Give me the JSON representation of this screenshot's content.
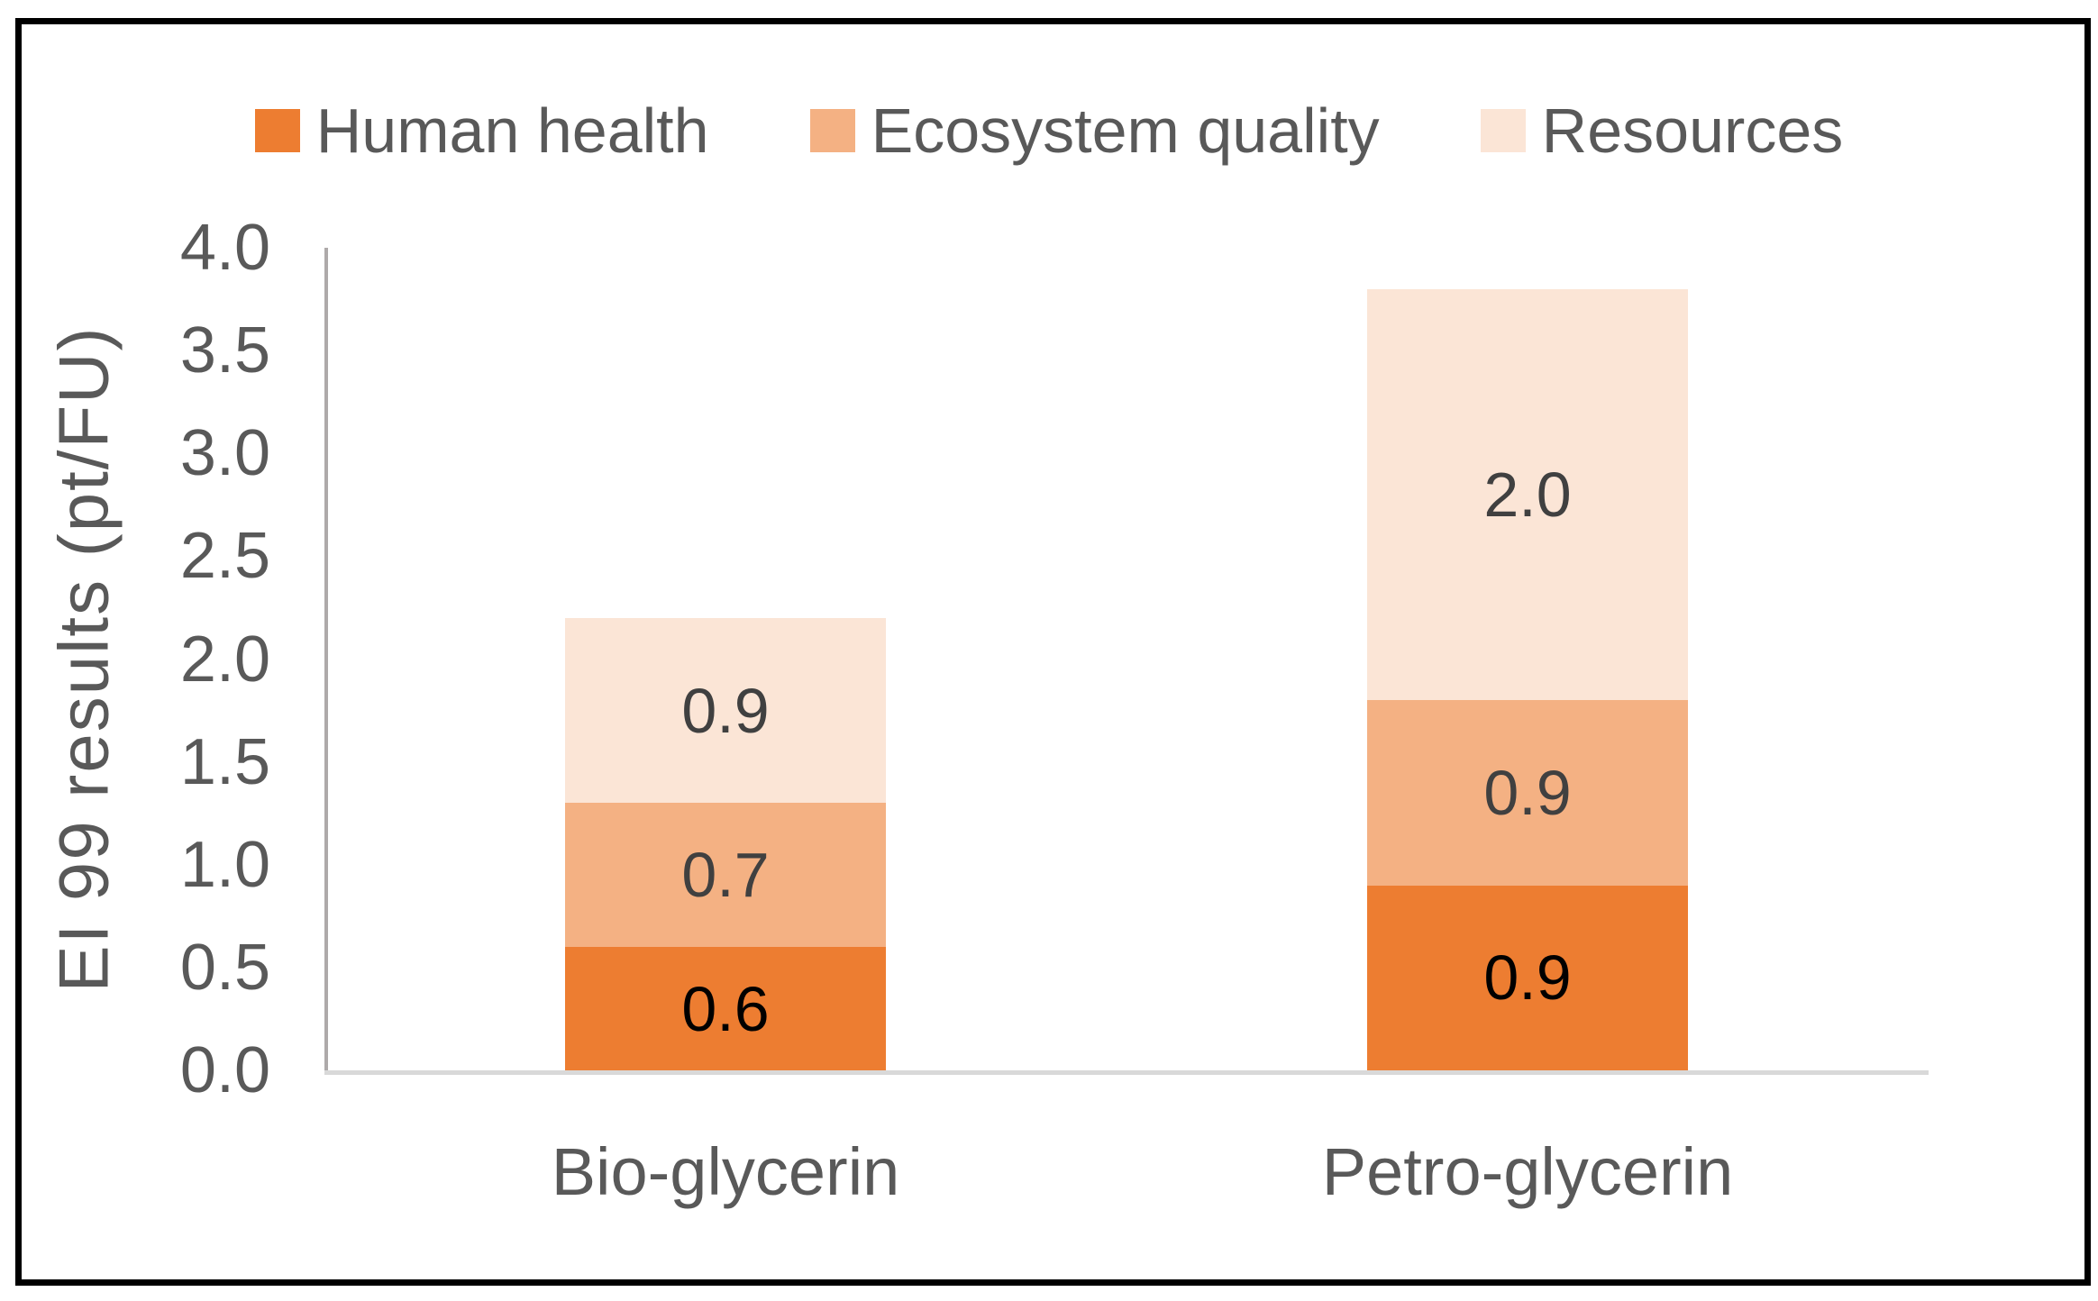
{
  "chart_data": {
    "type": "bar",
    "stacked": true,
    "title": "",
    "xlabel": "",
    "ylabel": "EI 99 results (pt/FU)",
    "ylim": [
      0.0,
      4.0
    ],
    "ytick_step": 0.5,
    "yticks": [
      "0.0",
      "0.5",
      "1.0",
      "1.5",
      "2.0",
      "2.5",
      "3.0",
      "3.5",
      "4.0"
    ],
    "grid": false,
    "legend_position": "top-center",
    "categories": [
      "Bio-glycerin",
      "Petro-glycerin"
    ],
    "series": [
      {
        "name": "Human health",
        "color": "#ED7D31",
        "label_color": "#000000",
        "values": [
          0.6,
          0.9
        ],
        "labels": [
          "0.6",
          "0.9"
        ]
      },
      {
        "name": "Ecosystem quality",
        "color": "#F4B183",
        "label_color": "#404040",
        "values": [
          0.7,
          0.9
        ],
        "labels": [
          "0.7",
          "0.9"
        ]
      },
      {
        "name": "Resources",
        "color": "#FBE5D6",
        "label_color": "#404040",
        "values": [
          0.9,
          2.0
        ],
        "labels": [
          "0.9",
          "2.0"
        ]
      }
    ],
    "totals": [
      2.2,
      3.8
    ]
  },
  "style": {
    "background": "#FFFFFF",
    "outer_border_color": "#000000",
    "y_axis_line_color": "#AEAAAA",
    "x_axis_line_color": "#D9D9D9",
    "text_color": "#595959"
  }
}
